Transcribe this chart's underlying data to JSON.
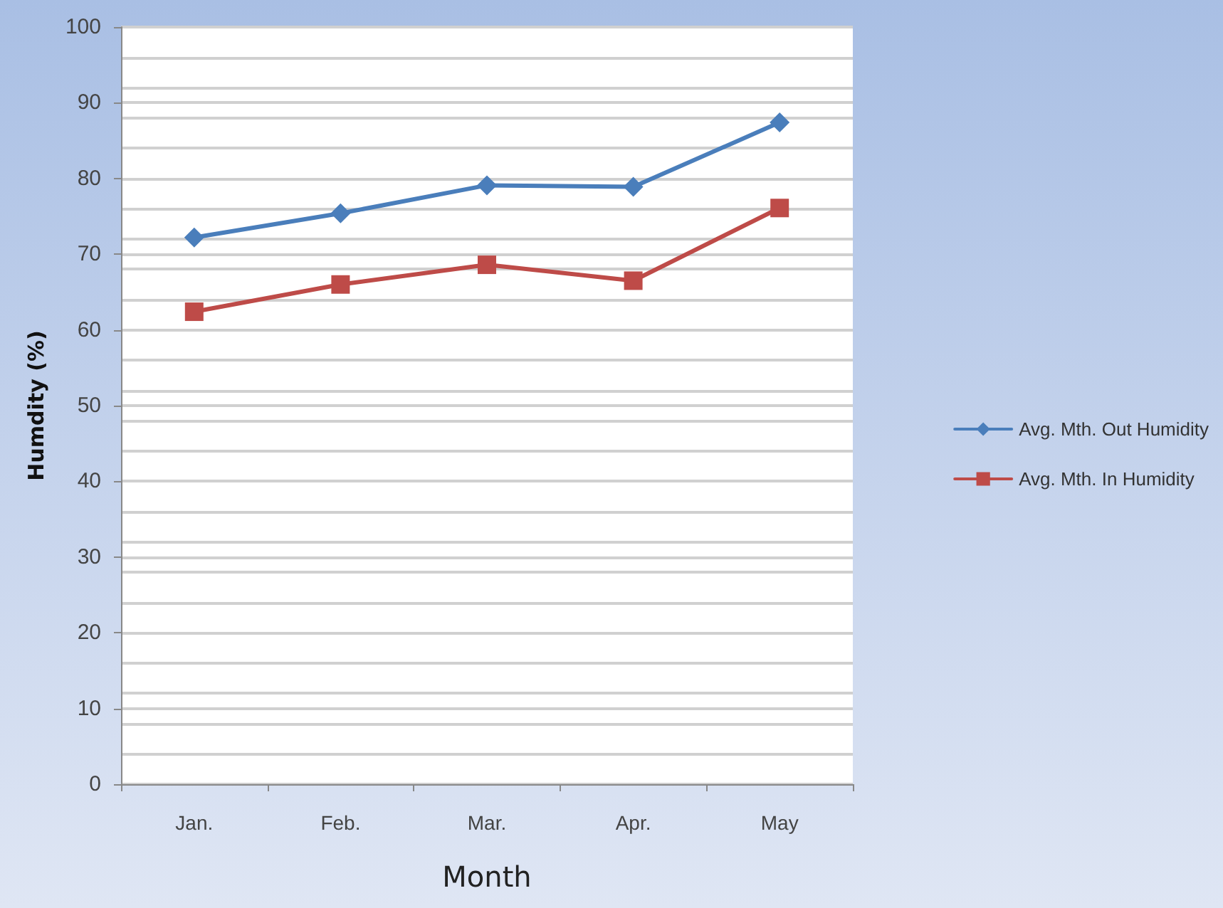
{
  "chart_data": {
    "type": "line",
    "xlabel": "Month",
    "ylabel": "Humdity (%)",
    "categories": [
      "Jan.",
      "Feb.",
      "Mar.",
      "Apr.",
      "May"
    ],
    "series": [
      {
        "name": "Avg. Mth. Out Humidity",
        "color": "#4a7ebb",
        "marker": "diamond",
        "values": [
          72.2,
          75.4,
          79.1,
          78.9,
          87.4
        ]
      },
      {
        "name": "Avg. Mth. In Humidity",
        "color": "#be4b48",
        "marker": "square",
        "values": [
          62.4,
          66.0,
          68.6,
          66.5,
          76.1
        ]
      }
    ],
    "ylim": [
      0,
      100
    ],
    "yticks": [
      0,
      10,
      20,
      30,
      40,
      50,
      60,
      70,
      80,
      90,
      100
    ],
    "grid": "y",
    "legend": "right"
  }
}
